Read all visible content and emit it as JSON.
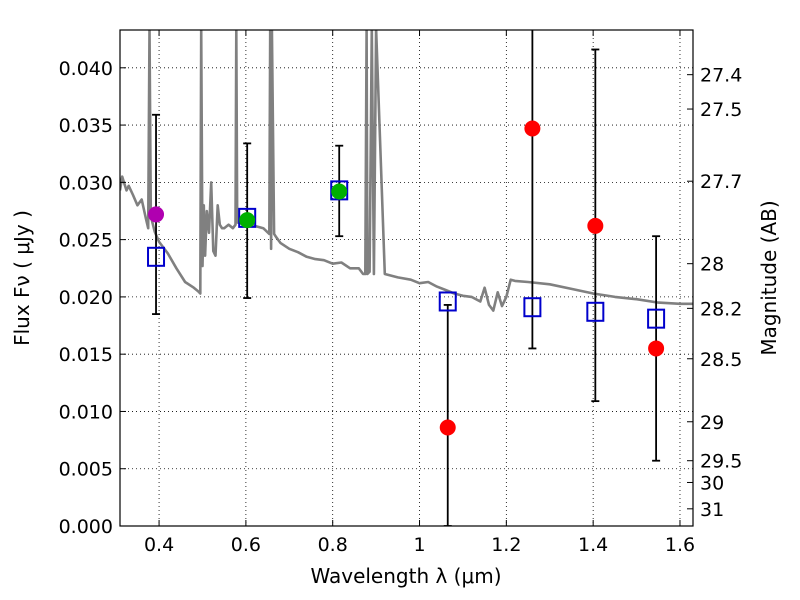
{
  "chart_data": {
    "type": "scatter",
    "title": "",
    "xlabel": "Wavelength  λ (μm)",
    "ylabel": "Flux  Fν  ( μJy )",
    "ylabel_right": "Magnitude (AB)",
    "xlim": [
      0.31,
      1.63
    ],
    "ylim": [
      0.0,
      0.0433
    ],
    "grid": true,
    "x_ticks": [
      0.4,
      0.6,
      0.8,
      1.0,
      1.2,
      1.4,
      1.6
    ],
    "x_tick_labels": [
      "0.4",
      "0.6",
      "0.8",
      "1",
      "1.2",
      "1.4",
      "1.6"
    ],
    "y_ticks": [
      0.0,
      0.005,
      0.01,
      0.015,
      0.02,
      0.025,
      0.03,
      0.035,
      0.04
    ],
    "y_tick_labels": [
      "0.000",
      "0.005",
      "0.010",
      "0.015",
      "0.020",
      "0.025",
      "0.030",
      "0.035",
      "0.040"
    ],
    "right_ticks": [
      {
        "label": "27.4",
        "flux": 0.0394
      },
      {
        "label": "27.5",
        "flux": 0.0364
      },
      {
        "label": "27.7",
        "flux": 0.0301
      },
      {
        "label": "28",
        "flux": 0.0229
      },
      {
        "label": "28.2",
        "flux": 0.019
      },
      {
        "label": "28.5",
        "flux": 0.0146
      },
      {
        "label": "29",
        "flux": 0.0091
      },
      {
        "label": "29.5",
        "flux": 0.0057
      },
      {
        "label": "30",
        "flux": 0.0038
      },
      {
        "label": "31",
        "flux": 0.0015
      }
    ],
    "series": [
      {
        "name": "model",
        "kind": "line",
        "color": "#808080",
        "x": [
          0.31,
          0.315,
          0.32,
          0.325,
          0.33,
          0.34,
          0.35,
          0.36,
          0.37,
          0.375,
          0.378,
          0.381,
          0.384,
          0.39,
          0.4,
          0.42,
          0.44,
          0.46,
          0.48,
          0.49,
          0.495,
          0.497,
          0.5,
          0.503,
          0.506,
          0.51,
          0.515,
          0.52,
          0.525,
          0.53,
          0.535,
          0.54,
          0.545,
          0.55,
          0.56,
          0.57,
          0.576,
          0.578,
          0.58,
          0.59,
          0.6,
          0.62,
          0.64,
          0.654,
          0.656,
          0.658,
          0.66,
          0.665,
          0.67,
          0.68,
          0.7,
          0.72,
          0.74,
          0.76,
          0.78,
          0.8,
          0.82,
          0.84,
          0.86,
          0.87,
          0.875,
          0.878,
          0.88,
          0.885,
          0.89,
          0.895,
          0.9,
          0.92,
          0.95,
          0.98,
          1.0,
          1.02,
          1.04,
          1.06,
          1.08,
          1.1,
          1.12,
          1.14,
          1.15,
          1.16,
          1.17,
          1.18,
          1.19,
          1.2,
          1.21,
          1.22,
          1.25,
          1.3,
          1.35,
          1.4,
          1.45,
          1.5,
          1.55,
          1.6,
          1.63
        ],
        "y": [
          0.0293,
          0.0305,
          0.0299,
          0.0293,
          0.0297,
          0.0289,
          0.028,
          0.0285,
          0.0268,
          0.026,
          0.0434,
          0.0272,
          0.0266,
          0.0257,
          0.0248,
          0.0238,
          0.0225,
          0.0213,
          0.0208,
          0.0205,
          0.0203,
          0.0434,
          0.0227,
          0.028,
          0.0236,
          0.0275,
          0.0256,
          0.03,
          0.024,
          0.0236,
          0.028,
          0.0263,
          0.026,
          0.026,
          0.0263,
          0.026,
          0.0263,
          0.0434,
          0.0265,
          0.0264,
          0.0263,
          0.0262,
          0.026,
          0.0255,
          0.0434,
          0.0242,
          0.0434,
          0.0255,
          0.0252,
          0.0247,
          0.0242,
          0.0239,
          0.0235,
          0.0233,
          0.0232,
          0.0229,
          0.023,
          0.0225,
          0.0225,
          0.022,
          0.022,
          0.0434,
          0.022,
          0.0222,
          0.0434,
          0.022,
          0.0434,
          0.022,
          0.0217,
          0.0215,
          0.0212,
          0.0213,
          0.0209,
          0.0206,
          0.0203,
          0.0201,
          0.02,
          0.0196,
          0.0208,
          0.0193,
          0.0188,
          0.0204,
          0.0192,
          0.02,
          0.0215,
          0.0214,
          0.0213,
          0.0211,
          0.0207,
          0.0203,
          0.02,
          0.0198,
          0.0195,
          0.0194,
          0.0194
        ]
      },
      {
        "name": "model photometry",
        "kind": "open-square",
        "color": "#0000cc",
        "x": [
          0.393,
          0.603,
          0.815,
          1.065,
          1.26,
          1.405,
          1.545
        ],
        "y": [
          0.0235,
          0.0269,
          0.0293,
          0.0196,
          0.0191,
          0.0187,
          0.0181
        ]
      },
      {
        "name": "magenta point",
        "kind": "filled-circle",
        "color": "#b000b0",
        "x": [
          0.393
        ],
        "y": [
          0.0272
        ]
      },
      {
        "name": "green points",
        "kind": "filled-circle",
        "color": "#00b000",
        "x": [
          0.603,
          0.815
        ],
        "y": [
          0.0267,
          0.0292
        ]
      },
      {
        "name": "red points",
        "kind": "filled-circle",
        "color": "#ff0000",
        "x": [
          1.065,
          1.26,
          1.405,
          1.545
        ],
        "y": [
          0.0086,
          0.0347,
          0.0262,
          0.0155
        ]
      }
    ],
    "error_bars": [
      {
        "x": 0.393,
        "low": 0.0185,
        "high": 0.0359
      },
      {
        "x": 0.603,
        "low": 0.0199,
        "high": 0.0334
      },
      {
        "x": 0.815,
        "low": 0.0253,
        "high": 0.0332
      },
      {
        "x": 1.065,
        "low": 0.0,
        "high": 0.0193,
        "cap_high": true
      },
      {
        "x": 1.26,
        "low": 0.0155,
        "high": 0.044,
        "cap_high": false
      },
      {
        "x": 1.405,
        "low": 0.0109,
        "high": 0.0416
      },
      {
        "x": 1.545,
        "low": 0.0057,
        "high": 0.0253
      }
    ]
  }
}
